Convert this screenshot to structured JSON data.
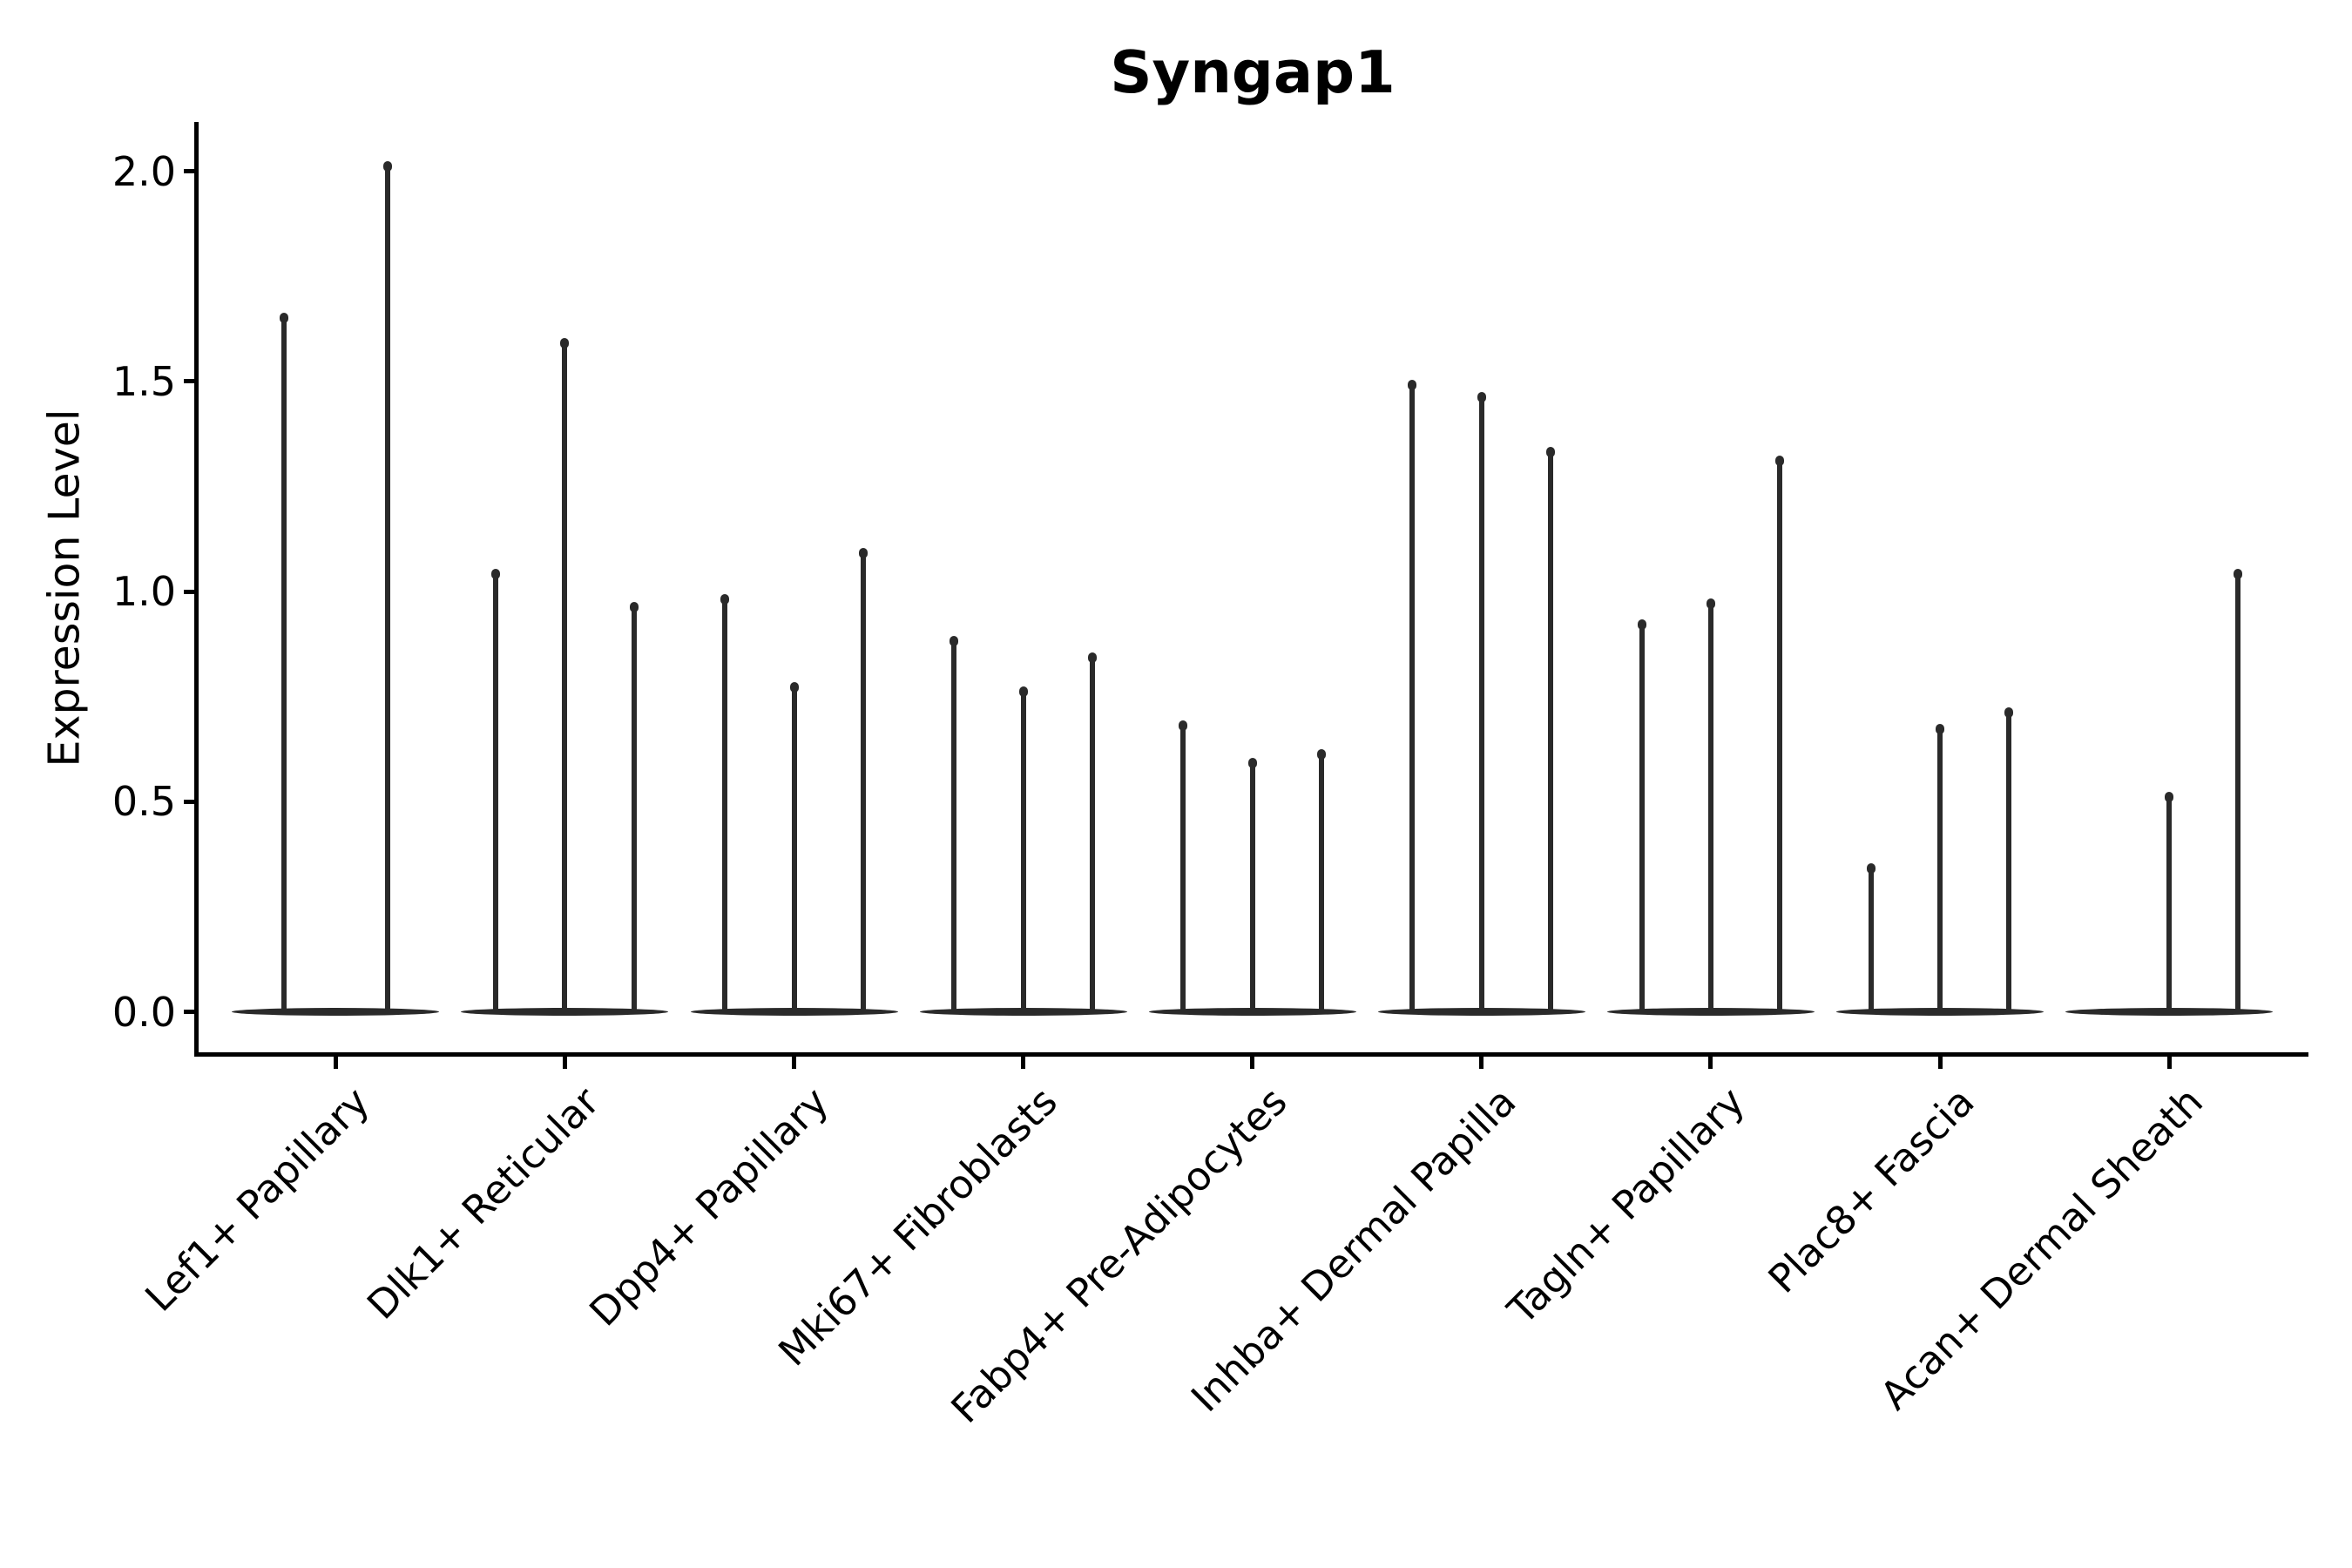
{
  "figure": {
    "background": "#ffffff"
  },
  "chart_data": {
    "type": "violin",
    "title": "Syngap1",
    "xlabel": "",
    "ylabel": "Expression Level",
    "legend": null,
    "grid": false,
    "ylim": [
      -0.1,
      2.12
    ],
    "yticks": [
      0.0,
      0.5,
      1.0,
      1.5,
      2.0
    ],
    "ytick_labels": [
      "0.0",
      "0.5",
      "1.0",
      "1.5",
      "2.0"
    ],
    "categories": [
      "Lef1+ Papillary",
      "Dlk1+ Reticular",
      "Dpp4+ Papillary",
      "Mki67+ Fibroblasts",
      "Fabp4+ Pre-Adipocytes",
      "Inhba+ Dermal Papilla",
      "Tagln+ Papillary",
      "Plac8+ Fascia",
      "Acan+ Dermal Sheath"
    ],
    "groups": [
      {
        "label": "Lef1+ Papillary",
        "violins": [
          1.66,
          2.02
        ]
      },
      {
        "label": "Dlk1+ Reticular",
        "violins": [
          1.05,
          1.6,
          0.97
        ]
      },
      {
        "label": "Dpp4+ Papillary",
        "violins": [
          0.99,
          0.78,
          1.1
        ]
      },
      {
        "label": "Mki67+ Fibroblasts",
        "violins": [
          0.89,
          0.77,
          0.85
        ]
      },
      {
        "label": "Fabp4+ Pre-Adipocytes",
        "violins": [
          0.69,
          0.6,
          0.62
        ]
      },
      {
        "label": "Inhba+ Dermal Papilla",
        "violins": [
          1.5,
          1.47,
          1.34
        ]
      },
      {
        "label": "Tagln+ Papillary",
        "violins": [
          0.93,
          0.98,
          1.32
        ]
      },
      {
        "label": "Plac8+ Fascia",
        "violins": [
          0.35,
          0.68,
          0.72
        ]
      },
      {
        "label": "Acan+ Dermal Sheath",
        "violins": [
          null,
          0.52,
          1.05
        ]
      }
    ],
    "colors": {
      "violin": "#2a2a2a",
      "axis": "#000000",
      "text": "#000000",
      "background": "#ffffff"
    }
  }
}
